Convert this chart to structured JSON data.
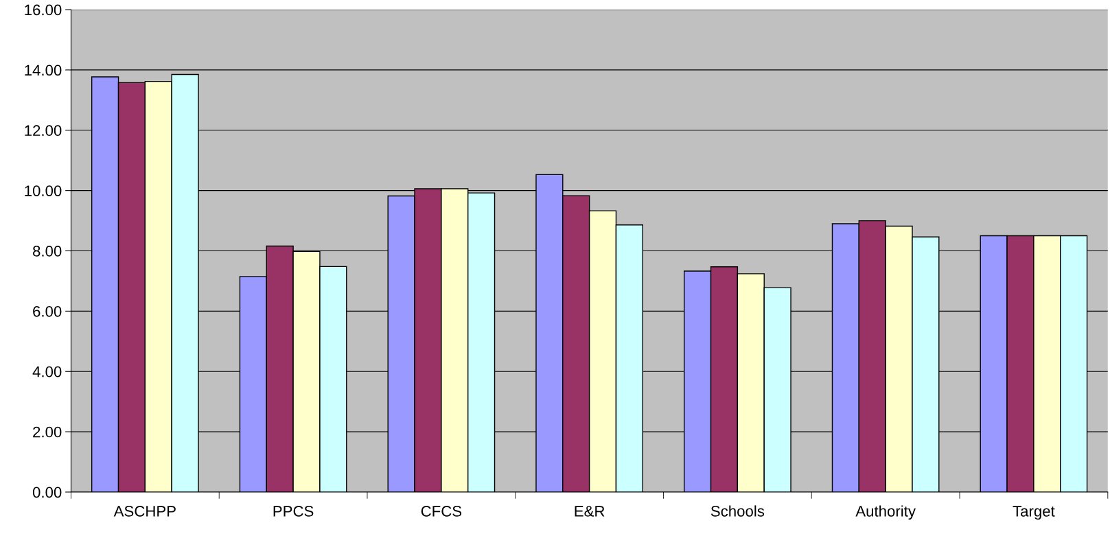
{
  "chart_data": {
    "type": "bar",
    "categories": [
      "ASCHPP",
      "PPCS",
      "CFCS",
      "E&R",
      "Schools",
      "Authority",
      "Target"
    ],
    "series": [
      {
        "color": "#9999ff",
        "values": [
          13.77,
          7.15,
          9.82,
          10.53,
          7.33,
          8.9,
          8.5
        ]
      },
      {
        "color": "#993366",
        "values": [
          13.58,
          8.16,
          10.06,
          9.83,
          7.47,
          9.0,
          8.5
        ]
      },
      {
        "color": "#ffffcc",
        "values": [
          13.62,
          7.98,
          10.06,
          9.33,
          7.24,
          8.82,
          8.5
        ]
      },
      {
        "color": "#ccffff",
        "values": [
          13.85,
          7.48,
          9.92,
          8.86,
          6.78,
          8.46,
          8.5
        ]
      }
    ],
    "ylim": [
      0,
      16
    ],
    "yticks": [
      {
        "value": 0,
        "label": "0.00"
      },
      {
        "value": 2,
        "label": "2.00"
      },
      {
        "value": 4,
        "label": "4.00"
      },
      {
        "value": 6,
        "label": "6.00"
      },
      {
        "value": 8,
        "label": "8.00"
      },
      {
        "value": 10,
        "label": "10.00"
      },
      {
        "value": 12,
        "label": "12.00"
      },
      {
        "value": 14,
        "label": "14.00"
      },
      {
        "value": 16,
        "label": "16.00"
      }
    ],
    "grid": "y",
    "legend": false
  }
}
